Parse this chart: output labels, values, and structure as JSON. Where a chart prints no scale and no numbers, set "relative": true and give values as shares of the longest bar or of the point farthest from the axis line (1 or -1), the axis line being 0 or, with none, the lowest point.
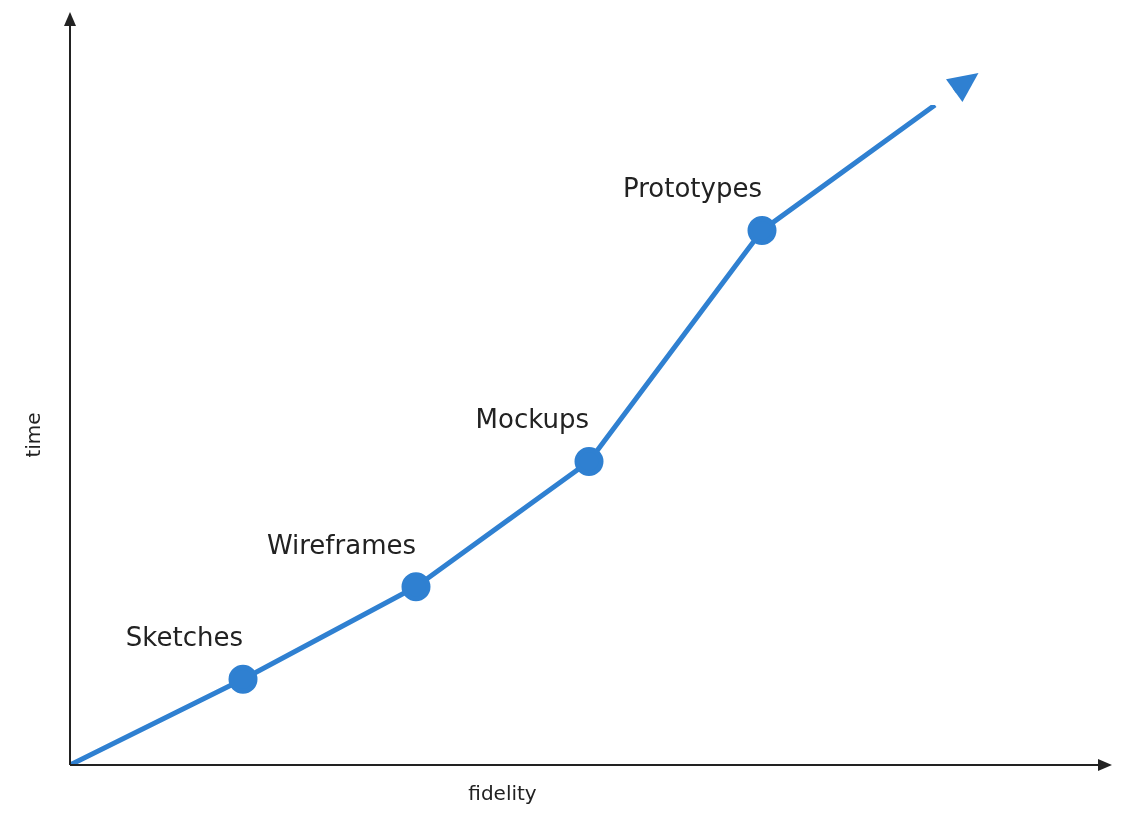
{
  "chart_data": {
    "type": "line",
    "relative": true,
    "xlabel": "fidelity",
    "ylabel": "time",
    "legend": false,
    "marker": "circle",
    "categories": [
      null,
      null,
      null,
      null,
      null,
      null
    ],
    "series": [
      {
        "color": "#2f80d1",
        "values": [
          0,
          0.13,
          0.27,
          0.46,
          0.81,
          1
        ]
      }
    ],
    "annotations": [
      "Sketches",
      "Wireframes",
      "Mockups",
      "Prototypes"
    ]
  }
}
